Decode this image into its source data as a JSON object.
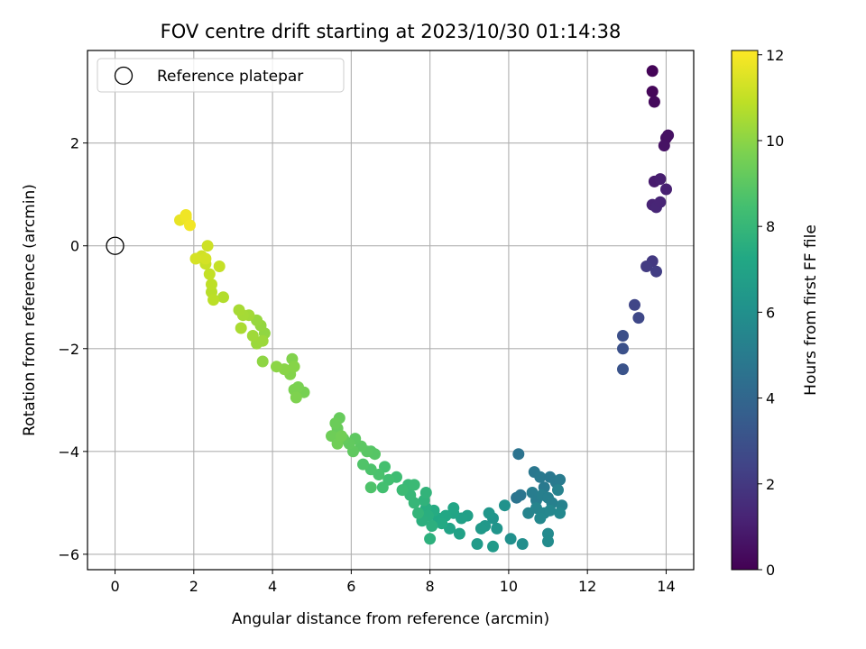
{
  "chart_data": {
    "type": "scatter",
    "title": "FOV centre drift starting at 2023/10/30 01:14:38",
    "xlabel": "Angular distance from reference (arcmin)",
    "ylabel": "Rotation from reference (arcmin)",
    "xlim": [
      -0.7,
      14.7
    ],
    "ylim": [
      -6.3,
      3.8
    ],
    "x_ticks": [
      0,
      2,
      4,
      6,
      8,
      10,
      12,
      14
    ],
    "y_ticks": [
      -6,
      -4,
      -2,
      0,
      2
    ],
    "grid": true,
    "legend": {
      "placement": "top-left",
      "entries": [
        {
          "label": "Reference platepar",
          "marker": "open-circle",
          "x": 0,
          "y": 0
        }
      ]
    },
    "colorbar": {
      "label": "Hours from first FF file",
      "min": 0,
      "max": 12.1,
      "ticks": [
        0,
        2,
        4,
        6,
        8,
        10,
        12
      ],
      "colormap": "viridis"
    },
    "reference_point": {
      "x": 0,
      "y": 0
    },
    "series": [
      {
        "values_format": "[x_arcmin, y_arcmin, hours]",
        "points": [
          [
            13.65,
            3.4,
            0.1
          ],
          [
            13.65,
            3.0,
            0.2
          ],
          [
            13.7,
            2.8,
            0.3
          ],
          [
            14.0,
            2.1,
            0.5
          ],
          [
            13.95,
            1.95,
            0.6
          ],
          [
            14.05,
            2.15,
            0.55
          ],
          [
            13.7,
            1.25,
            0.9
          ],
          [
            13.85,
            1.3,
            1.0
          ],
          [
            14.0,
            1.1,
            1.1
          ],
          [
            13.65,
            0.8,
            1.2
          ],
          [
            13.75,
            0.75,
            1.3
          ],
          [
            13.85,
            0.85,
            1.25
          ],
          [
            13.65,
            -0.3,
            2.0
          ],
          [
            13.5,
            -0.4,
            2.1
          ],
          [
            13.75,
            -0.5,
            2.2
          ],
          [
            13.2,
            -1.15,
            2.5
          ],
          [
            13.3,
            -1.4,
            2.6
          ],
          [
            12.9,
            -1.75,
            2.9
          ],
          [
            12.9,
            -2.0,
            3.0
          ],
          [
            12.9,
            -2.4,
            3.1
          ],
          [
            10.25,
            -4.05,
            4.6
          ],
          [
            10.2,
            -4.9,
            4.65
          ],
          [
            10.3,
            -4.85,
            4.7
          ],
          [
            10.65,
            -4.4,
            4.8
          ],
          [
            10.8,
            -4.5,
            4.9
          ],
          [
            11.05,
            -4.5,
            4.85
          ],
          [
            11.2,
            -4.6,
            4.95
          ],
          [
            11.3,
            -4.55,
            5.0
          ],
          [
            10.9,
            -4.7,
            4.9
          ],
          [
            10.6,
            -4.8,
            5.1
          ],
          [
            10.7,
            -4.95,
            5.1
          ],
          [
            10.85,
            -4.85,
            5.2
          ],
          [
            11.0,
            -4.9,
            5.2
          ],
          [
            11.1,
            -5.0,
            5.25
          ],
          [
            11.25,
            -4.75,
            5.3
          ],
          [
            11.35,
            -5.05,
            5.3
          ],
          [
            10.5,
            -5.2,
            5.4
          ],
          [
            10.7,
            -5.1,
            5.4
          ],
          [
            10.9,
            -5.2,
            5.5
          ],
          [
            11.05,
            -5.15,
            5.55
          ],
          [
            11.3,
            -5.2,
            5.6
          ],
          [
            10.8,
            -5.3,
            5.6
          ],
          [
            11.0,
            -5.6,
            5.7
          ],
          [
            11.0,
            -5.75,
            5.75
          ],
          [
            10.35,
            -5.8,
            5.9
          ],
          [
            10.05,
            -5.7,
            6.0
          ],
          [
            9.9,
            -5.05,
            6.1
          ],
          [
            9.6,
            -5.3,
            6.2
          ],
          [
            9.7,
            -5.5,
            6.25
          ],
          [
            9.5,
            -5.2,
            6.3
          ],
          [
            9.4,
            -5.45,
            6.4
          ],
          [
            9.3,
            -5.5,
            6.45
          ],
          [
            9.6,
            -5.85,
            6.5
          ],
          [
            9.2,
            -5.8,
            6.55
          ],
          [
            8.95,
            -5.25,
            6.8
          ],
          [
            8.8,
            -5.3,
            6.85
          ],
          [
            8.75,
            -5.6,
            6.9
          ],
          [
            8.5,
            -5.5,
            7.0
          ],
          [
            8.6,
            -5.2,
            7.05
          ],
          [
            8.6,
            -5.1,
            7.1
          ],
          [
            8.4,
            -5.25,
            7.2
          ],
          [
            8.2,
            -5.3,
            7.25
          ],
          [
            8.3,
            -5.4,
            7.3
          ],
          [
            8.1,
            -5.15,
            7.4
          ],
          [
            7.9,
            -5.1,
            7.5
          ],
          [
            7.95,
            -5.25,
            7.55
          ],
          [
            7.8,
            -5.35,
            7.6
          ],
          [
            8.05,
            -5.45,
            7.65
          ],
          [
            8.0,
            -5.7,
            7.7
          ],
          [
            7.85,
            -4.95,
            7.8
          ],
          [
            7.9,
            -4.8,
            7.85
          ],
          [
            7.7,
            -5.2,
            7.9
          ],
          [
            7.6,
            -5.0,
            8.0
          ],
          [
            7.5,
            -4.85,
            8.05
          ],
          [
            7.45,
            -4.65,
            8.1
          ],
          [
            7.6,
            -4.65,
            8.15
          ],
          [
            7.3,
            -4.75,
            8.2
          ],
          [
            7.15,
            -4.5,
            8.3
          ],
          [
            6.95,
            -4.55,
            8.4
          ],
          [
            6.8,
            -4.7,
            8.45
          ],
          [
            6.85,
            -4.3,
            8.5
          ],
          [
            6.7,
            -4.45,
            8.6
          ],
          [
            6.5,
            -4.35,
            8.65
          ],
          [
            6.5,
            -4.7,
            8.7
          ],
          [
            6.3,
            -4.25,
            8.75
          ],
          [
            6.5,
            -4.0,
            8.85
          ],
          [
            6.6,
            -4.05,
            8.9
          ],
          [
            6.4,
            -4.0,
            8.95
          ],
          [
            6.25,
            -3.9,
            9.0
          ],
          [
            6.1,
            -3.75,
            9.05
          ],
          [
            6.05,
            -4.0,
            9.1
          ],
          [
            5.95,
            -3.85,
            9.15
          ],
          [
            5.8,
            -3.75,
            9.2
          ],
          [
            5.7,
            -3.35,
            9.25
          ],
          [
            5.65,
            -3.55,
            9.3
          ],
          [
            5.6,
            -3.45,
            9.35
          ],
          [
            5.5,
            -3.7,
            9.4
          ],
          [
            5.65,
            -3.85,
            9.45
          ],
          [
            5.75,
            -3.7,
            9.5
          ],
          [
            4.8,
            -2.85,
            9.6
          ],
          [
            4.65,
            -2.75,
            9.65
          ],
          [
            4.55,
            -2.8,
            9.7
          ],
          [
            4.6,
            -2.95,
            9.75
          ],
          [
            4.5,
            -2.2,
            9.8
          ],
          [
            4.45,
            -2.5,
            9.85
          ],
          [
            4.55,
            -2.35,
            9.9
          ],
          [
            4.3,
            -2.4,
            9.95
          ],
          [
            4.1,
            -2.35,
            10.0
          ],
          [
            3.75,
            -2.25,
            10.05
          ],
          [
            3.8,
            -1.7,
            10.1
          ],
          [
            3.7,
            -1.55,
            10.15
          ],
          [
            3.6,
            -1.45,
            10.2
          ],
          [
            3.6,
            -1.9,
            10.25
          ],
          [
            3.75,
            -1.85,
            10.3
          ],
          [
            3.5,
            -1.75,
            10.35
          ],
          [
            3.4,
            -1.35,
            10.4
          ],
          [
            3.25,
            -1.35,
            10.45
          ],
          [
            3.15,
            -1.25,
            10.5
          ],
          [
            3.2,
            -1.6,
            10.55
          ],
          [
            2.75,
            -1.0,
            10.7
          ],
          [
            2.45,
            -0.9,
            10.8
          ],
          [
            2.5,
            -1.05,
            10.85
          ],
          [
            2.45,
            -0.75,
            10.9
          ],
          [
            2.4,
            -0.55,
            11.0
          ],
          [
            2.65,
            -0.4,
            11.05
          ],
          [
            2.3,
            -0.35,
            11.1
          ],
          [
            2.35,
            0.0,
            11.2
          ],
          [
            2.2,
            -0.2,
            11.25
          ],
          [
            2.3,
            -0.25,
            11.3
          ],
          [
            2.05,
            -0.25,
            11.35
          ],
          [
            1.65,
            0.5,
            11.7
          ],
          [
            1.8,
            0.55,
            11.8
          ],
          [
            1.8,
            0.6,
            11.85
          ],
          [
            1.9,
            0.4,
            11.9
          ]
        ]
      }
    ]
  }
}
